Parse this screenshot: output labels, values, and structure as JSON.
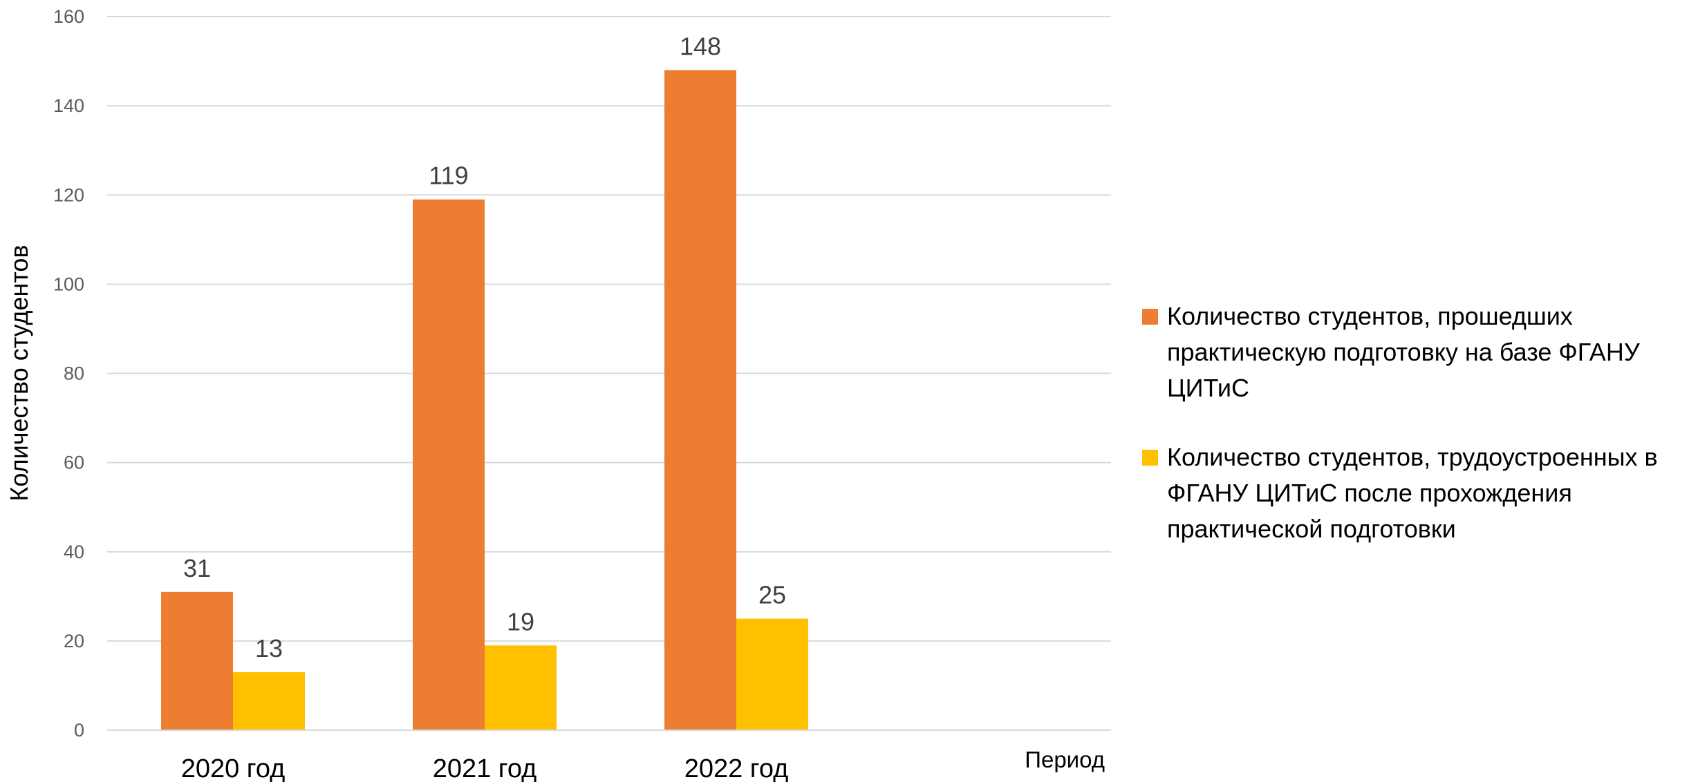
{
  "chart_data": {
    "type": "bar",
    "categories": [
      "2020 год",
      "2021 год",
      "2022 год"
    ],
    "series": [
      {
        "name": "Количество студентов, прошедших практическую подготовку на базе ФГАНУ ЦИТиС",
        "values": [
          31,
          119,
          148
        ],
        "color": "#ED7D31"
      },
      {
        "name": "Количество студентов, трудоустроенных в ФГАНУ ЦИТиС после прохождения практической подготовки",
        "values": [
          13,
          19,
          25
        ],
        "color": "#FFC000"
      }
    ],
    "xlabel": "Период",
    "ylabel": "Количество студентов",
    "ylim": [
      0,
      160
    ],
    "yticks": [
      0,
      20,
      40,
      60,
      80,
      100,
      120,
      140,
      160
    ],
    "grid": true,
    "gridline_color": "#D9D9D9",
    "legend_position": "right",
    "data_labels": true
  }
}
